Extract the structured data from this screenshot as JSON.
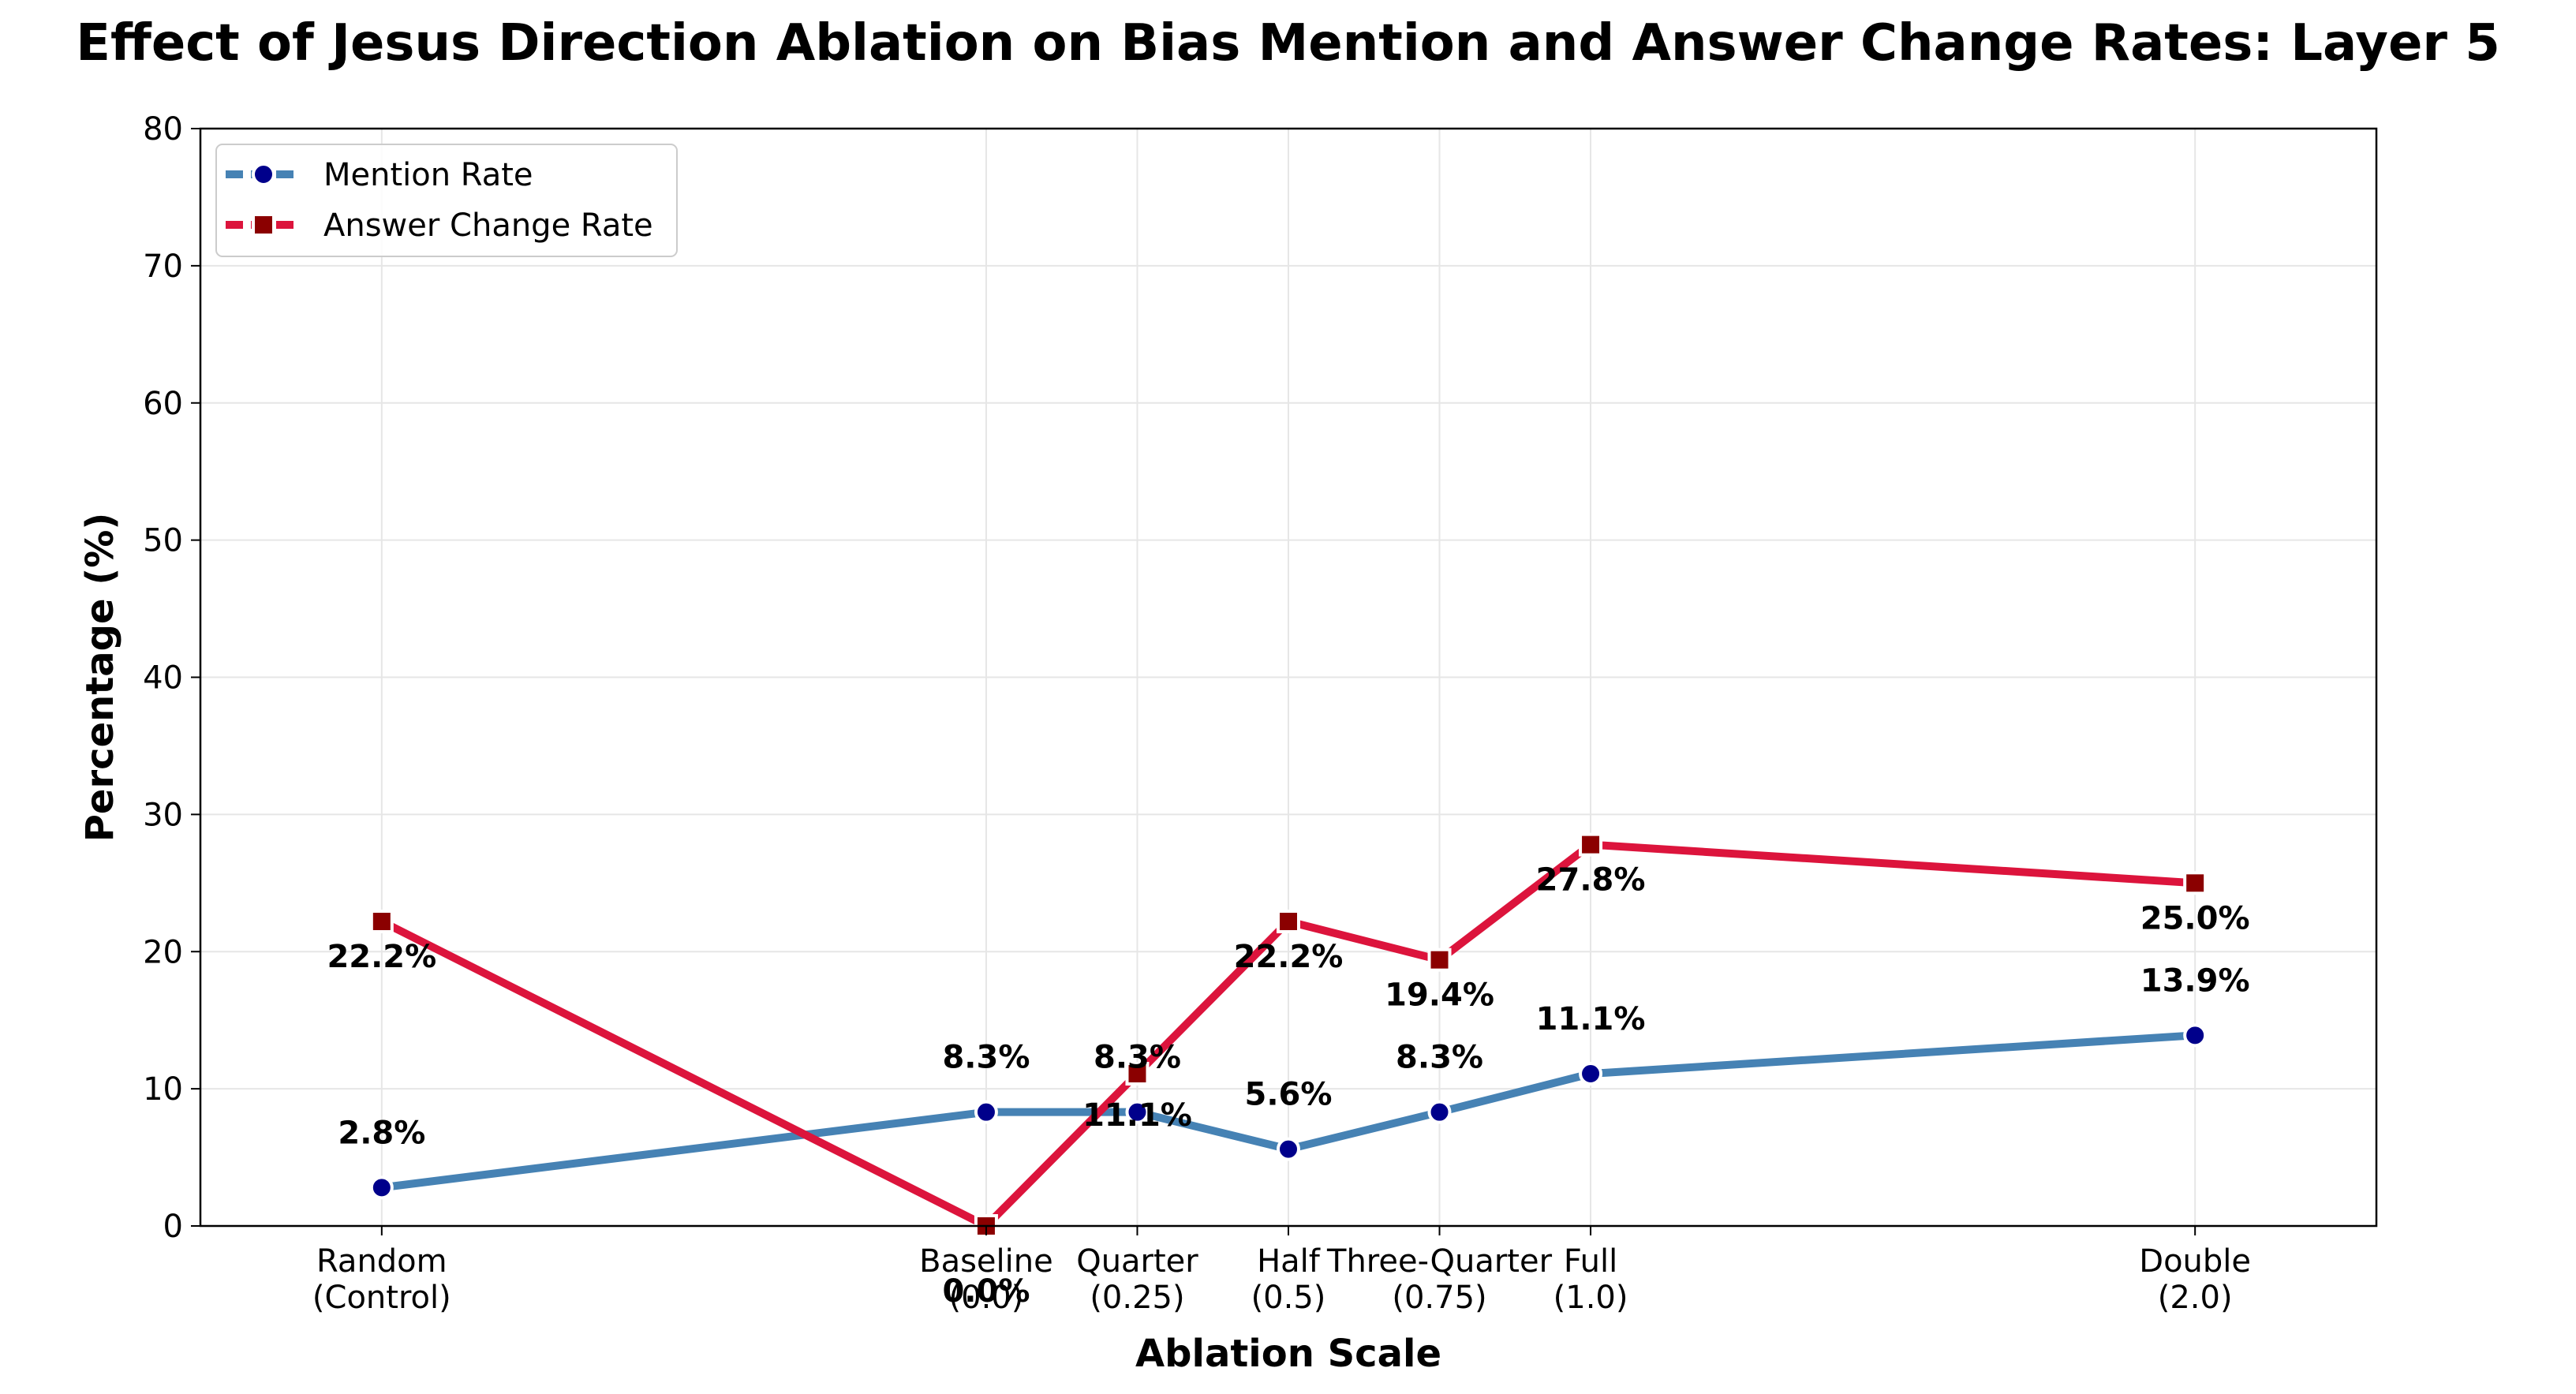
{
  "chart_data": {
    "type": "line",
    "title": "Effect of Jesus Direction Ablation on Bias Mention and Answer Change Rates: Layer 5",
    "xlabel": "Ablation Scale",
    "ylabel": "Percentage (%)",
    "ylim": [
      0,
      80
    ],
    "yticks": [
      0,
      10,
      20,
      30,
      40,
      50,
      60,
      70,
      80
    ],
    "grid": true,
    "legend_position": "upper-left",
    "x": [
      -1,
      0,
      0.25,
      0.5,
      0.75,
      1.0,
      2.0
    ],
    "categories": [
      [
        "Random",
        "(Control)"
      ],
      [
        "Baseline",
        "(0.0)"
      ],
      [
        "Quarter",
        "(0.25)"
      ],
      [
        "Half",
        "(0.5)"
      ],
      [
        "Three-Quarter",
        "(0.75)"
      ],
      [
        "Full",
        "(1.0)"
      ],
      [
        "Double",
        "(2.0)"
      ]
    ],
    "series": [
      {
        "name": "Mention Rate",
        "values": [
          2.8,
          8.3,
          8.3,
          5.6,
          8.3,
          11.1,
          13.9
        ],
        "labels": [
          "2.8%",
          "8.3%",
          "8.3%",
          "5.6%",
          "8.3%",
          "11.1%",
          "13.9%"
        ],
        "line_color": "#4682b4",
        "marker_color": "#00008b",
        "marker": "circle"
      },
      {
        "name": "Answer Change Rate",
        "values": [
          22.2,
          0.0,
          11.1,
          22.2,
          19.4,
          27.8,
          25.0
        ],
        "labels": [
          "22.2%",
          "0.0%",
          "11.1%",
          "22.2%",
          "19.4%",
          "27.8%",
          "25.0%"
        ],
        "line_color": "#dc143c",
        "marker_color": "#8b0000",
        "marker": "square"
      }
    ]
  }
}
